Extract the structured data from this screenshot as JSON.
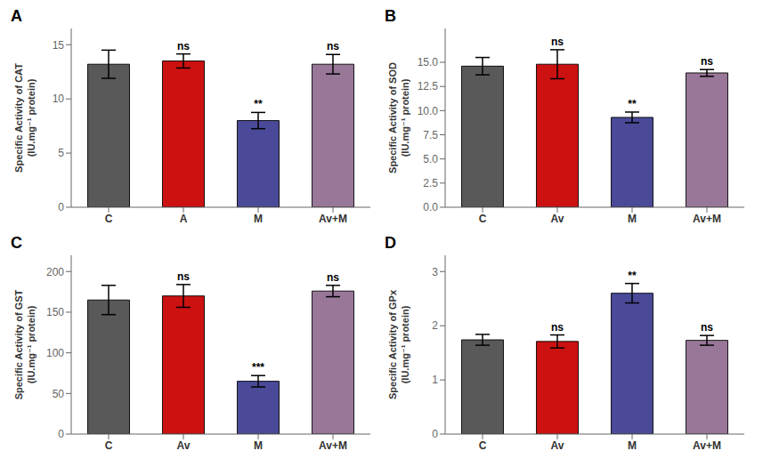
{
  "chart_data": [
    {
      "type": "bar",
      "title": "A",
      "ylabel": "Specific Activity of CAT\n(IU.mg⁻¹ protein)",
      "categories": [
        "C",
        "A",
        "M",
        "Av+M"
      ],
      "values": [
        13.2,
        13.5,
        8.0,
        13.2
      ],
      "errors": [
        1.3,
        0.65,
        0.75,
        0.9
      ],
      "annotations": [
        null,
        "ns",
        "**",
        "ns"
      ],
      "colors": [
        "#595959",
        "#cc1111",
        "#4a4a99",
        "#997799"
      ],
      "ylim": [
        0,
        16.5
      ],
      "yticks": [
        0,
        5,
        10,
        15
      ],
      "grid": false
    },
    {
      "type": "bar",
      "title": "B",
      "ylabel": "Specific Activity of SOD\n(IU.mg⁻¹ protein)",
      "categories": [
        "C",
        "Av",
        "M",
        "Av+M"
      ],
      "values": [
        14.6,
        14.8,
        9.3,
        13.9
      ],
      "errors": [
        0.9,
        1.5,
        0.55,
        0.35
      ],
      "annotations": [
        null,
        "ns",
        "**",
        "ns"
      ],
      "colors": [
        "#595959",
        "#cc1111",
        "#4a4a99",
        "#997799"
      ],
      "ylim": [
        0,
        18.5
      ],
      "yticks": [
        {
          "value": 0,
          "label": "0.0"
        },
        2.5,
        {
          "value": 5,
          "label": "5.0"
        },
        7.5,
        {
          "value": 10,
          "label": "10.0"
        },
        12.5,
        {
          "value": 15,
          "label": "15.0"
        }
      ],
      "grid": false
    },
    {
      "type": "bar",
      "title": "C",
      "ylabel": "Specific Activity of GST\n(IU.mg⁻¹ protein)",
      "categories": [
        "C",
        "Av",
        "M",
        "Av+M"
      ],
      "values": [
        165,
        170,
        65,
        176
      ],
      "errors": [
        18,
        14,
        7,
        7
      ],
      "annotations": [
        null,
        "ns",
        "***",
        "ns"
      ],
      "colors": [
        "#595959",
        "#cc1111",
        "#4a4a99",
        "#997799"
      ],
      "ylim": [
        0,
        220
      ],
      "yticks": [
        0,
        50,
        100,
        150,
        200
      ],
      "grid": false
    },
    {
      "type": "bar",
      "title": "D",
      "ylabel": "Specific Activity of GPx\n(IU.mg⁻¹ protein)",
      "categories": [
        "C",
        "Av",
        "M",
        "Av+M"
      ],
      "values": [
        1.74,
        1.71,
        2.6,
        1.73
      ],
      "errors": [
        0.1,
        0.12,
        0.18,
        0.09
      ],
      "annotations": [
        null,
        "ns",
        "**",
        "ns"
      ],
      "colors": [
        "#595959",
        "#cc1111",
        "#4a4a99",
        "#997799"
      ],
      "ylim": [
        0,
        3.3
      ],
      "yticks": [
        0,
        1,
        2,
        3
      ],
      "grid": false
    }
  ]
}
